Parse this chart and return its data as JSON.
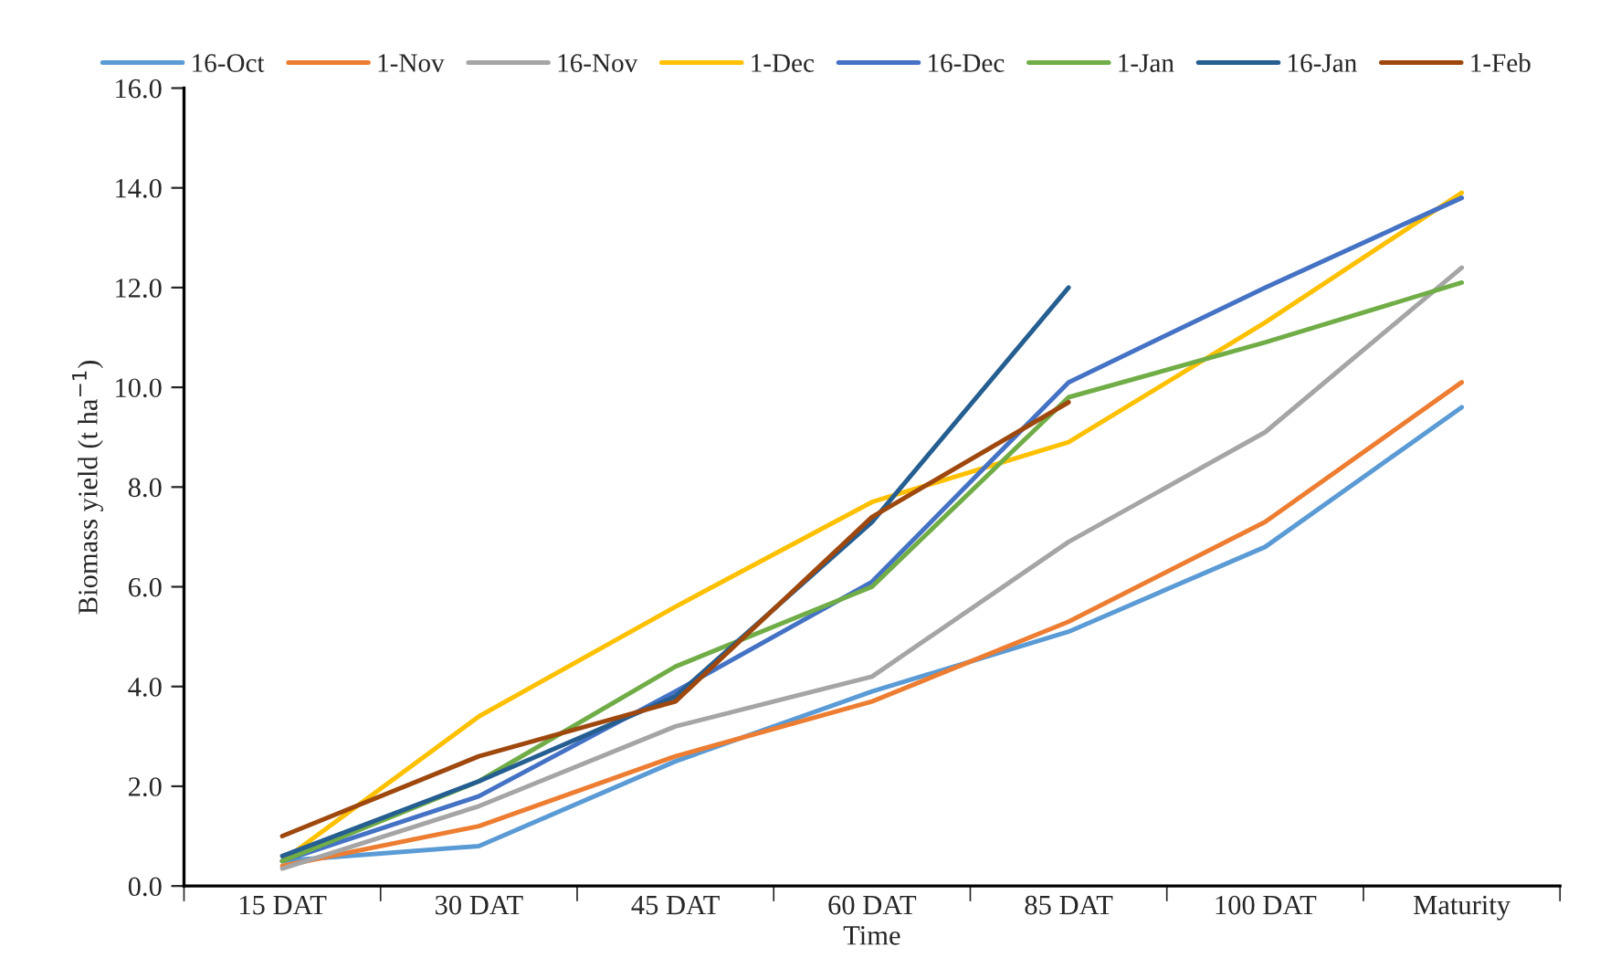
{
  "chart_data": {
    "type": "line",
    "xlabel": "Time",
    "ylabel": "Biomass yield (t ha$^{−1}$)",
    "categories": [
      "15 DAT",
      "30 DAT",
      "45 DAT",
      "60 DAT",
      "85 DAT",
      "100 DAT",
      "Maturity"
    ],
    "ylim": [
      0,
      16
    ],
    "yticks": [
      {
        "value": 0,
        "label": "0.0"
      },
      {
        "value": 2,
        "label": "2.0"
      },
      {
        "value": 4,
        "label": "4.0"
      },
      {
        "value": 6,
        "label": "6.0"
      },
      {
        "value": 8,
        "label": "8.0"
      },
      {
        "value": 10,
        "label": "10.0"
      },
      {
        "value": 12,
        "label": "12.0"
      },
      {
        "value": 14,
        "label": "14.0"
      },
      {
        "value": 16,
        "label": "16.0"
      }
    ],
    "grid": false,
    "legend": "top",
    "marker": "none",
    "line_style": "solid",
    "series": [
      {
        "name": "16-Oct",
        "color": "#5b9bd5",
        "values": [
          0.5,
          0.8,
          2.5,
          3.9,
          5.1,
          6.8,
          9.6
        ]
      },
      {
        "name": "1-Nov",
        "color": "#ed7d31",
        "values": [
          0.4,
          1.2,
          2.6,
          3.7,
          5.3,
          7.3,
          10.1
        ]
      },
      {
        "name": "16-Nov",
        "color": "#a5a5a5",
        "values": [
          0.35,
          1.6,
          3.2,
          4.2,
          6.9,
          9.1,
          12.4
        ]
      },
      {
        "name": "1-Dec",
        "color": "#ffc000",
        "values": [
          0.5,
          3.4,
          5.6,
          7.7,
          8.9,
          11.3,
          13.9
        ]
      },
      {
        "name": "16-Dec",
        "color": "#4472c4",
        "values": [
          0.5,
          1.8,
          3.9,
          6.1,
          10.1,
          12.0,
          13.8
        ]
      },
      {
        "name": "1-Jan",
        "color": "#70ad47",
        "values": [
          0.5,
          2.1,
          4.4,
          6.0,
          9.8,
          10.9,
          12.1
        ]
      },
      {
        "name": "16-Jan",
        "color": "#255e91",
        "values": [
          0.6,
          2.1,
          3.8,
          7.3,
          12.0,
          null,
          null
        ]
      },
      {
        "name": "1-Feb",
        "color": "#9e480e",
        "values": [
          1.0,
          2.6,
          3.7,
          7.4,
          9.7,
          null,
          null
        ]
      }
    ]
  }
}
